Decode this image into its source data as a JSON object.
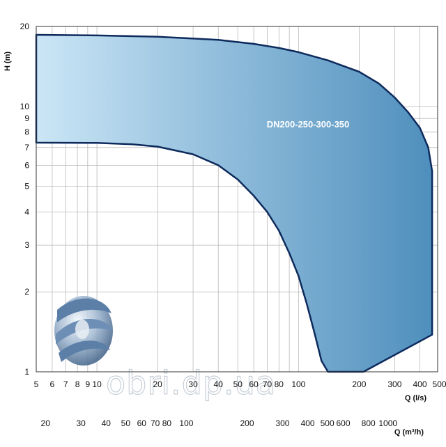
{
  "chart_data": {
    "type": "area",
    "title": "",
    "xlabel": "Q (l/s)",
    "x2label": "Q (m³/h)",
    "ylabel": "H (m)",
    "xscale": "log",
    "yscale": "log",
    "xlim": [
      5,
      490
    ],
    "ylim": [
      1,
      20
    ],
    "grid": true,
    "x_ticks": [
      "5",
      "6",
      "7",
      "8",
      "9",
      "10",
      "20",
      "30",
      "40",
      "50",
      "60",
      "70",
      "80",
      "100",
      "200",
      "300",
      "400",
      "500"
    ],
    "y_ticks": [
      "1",
      "2",
      "3",
      "4",
      "5",
      "6",
      "7",
      "8",
      "9",
      "10",
      "20"
    ],
    "x2_ticks": [
      "20",
      "30",
      "40",
      "50",
      "60",
      "70",
      "80",
      "100",
      "200",
      "300",
      "400",
      "500",
      "600",
      "800",
      "1000"
    ],
    "region_label": "DN200-250-300-350",
    "fill_colors": [
      "#cbe6f6",
      "#4f8fbd"
    ],
    "outline_color": "#0d2a5c",
    "series": [
      {
        "name": "DN200-250-300-350",
        "upper_boundary": [
          [
            5,
            18.6
          ],
          [
            10,
            18.5
          ],
          [
            20,
            18.3
          ],
          [
            40,
            17.8
          ],
          [
            60,
            17.2
          ],
          [
            80,
            16.6
          ],
          [
            100,
            16.0
          ],
          [
            140,
            14.9
          ],
          [
            200,
            13.5
          ],
          [
            250,
            12.2
          ],
          [
            300,
            10.8
          ],
          [
            350,
            9.5
          ],
          [
            400,
            8.3
          ],
          [
            440,
            7.0
          ],
          [
            460,
            5.7
          ]
        ],
        "right_edge": [
          [
            460,
            5.7
          ],
          [
            460,
            1.38
          ]
        ],
        "bottom_edge": [
          [
            460,
            1.38
          ],
          [
            210,
            1.0
          ],
          [
            140,
            1.0
          ]
        ],
        "lower_boundary": [
          [
            5,
            7.3
          ],
          [
            10,
            7.28
          ],
          [
            15,
            7.2
          ],
          [
            20,
            7.05
          ],
          [
            30,
            6.6
          ],
          [
            40,
            6.0
          ],
          [
            50,
            5.3
          ],
          [
            60,
            4.6
          ],
          [
            70,
            4.0
          ],
          [
            80,
            3.4
          ],
          [
            90,
            2.8
          ],
          [
            100,
            2.3
          ],
          [
            110,
            1.8
          ],
          [
            120,
            1.4
          ],
          [
            130,
            1.1
          ],
          [
            140,
            1.0
          ]
        ]
      }
    ]
  }
}
